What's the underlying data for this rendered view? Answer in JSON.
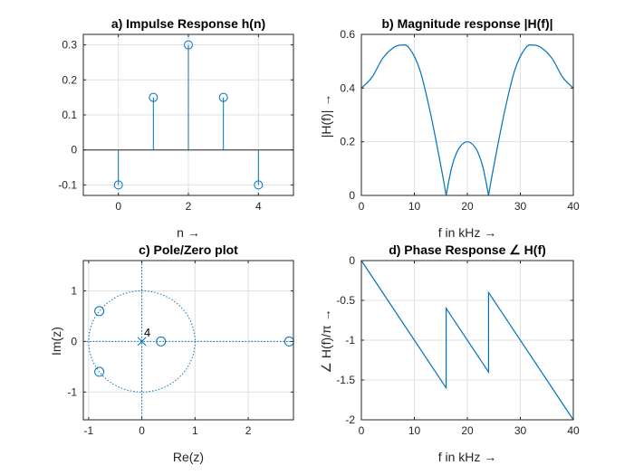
{
  "colors": {
    "series": "#0072BD",
    "grid": "#dfdfdf",
    "axis": "#262626"
  },
  "chart_data": [
    {
      "id": "a",
      "type": "stem",
      "title": "a) Impulse Response h(n)",
      "xlabel": "n →",
      "ylabel": "",
      "xlim": [
        -1,
        5
      ],
      "ylim": [
        -0.13,
        0.33
      ],
      "xticks": [
        0,
        2,
        4
      ],
      "xticklabels": [
        "0",
        "2",
        "4"
      ],
      "yticks": [
        -0.1,
        0,
        0.1,
        0.2,
        0.3
      ],
      "yticklabels": [
        "-0.1",
        "0",
        "0.1",
        "0.2",
        "0.3"
      ],
      "grid": true,
      "x": [
        0,
        1,
        2,
        3,
        4
      ],
      "values": [
        -0.1,
        0.15,
        0.3,
        0.15,
        -0.1
      ]
    },
    {
      "id": "b",
      "type": "line",
      "title": "b) Magnitude response |H(f)|",
      "xlabel": "f in kHz →",
      "ylabel": "|H(f)| →",
      "xlim": [
        0,
        40
      ],
      "ylim": [
        0,
        0.6
      ],
      "xticks": [
        0,
        10,
        20,
        30,
        40
      ],
      "xticklabels": [
        "0",
        "10",
        "20",
        "30",
        "40"
      ],
      "yticks": [
        0,
        0.2,
        0.4,
        0.6
      ],
      "yticklabels": [
        "0",
        "0.2",
        "0.4",
        "0.6"
      ],
      "grid": true,
      "x": [
        0,
        2,
        4,
        6,
        7.5,
        9,
        11,
        13,
        15,
        16,
        17,
        18,
        19,
        20,
        21,
        22,
        23,
        24,
        25,
        27,
        29,
        31,
        32.5,
        34,
        36,
        38,
        40
      ],
      "values": [
        0.4,
        0.44,
        0.51,
        0.55,
        0.56,
        0.55,
        0.47,
        0.31,
        0.11,
        0,
        0.1,
        0.16,
        0.19,
        0.2,
        0.19,
        0.16,
        0.1,
        0,
        0.11,
        0.31,
        0.47,
        0.55,
        0.56,
        0.55,
        0.51,
        0.44,
        0.4
      ]
    },
    {
      "id": "c",
      "type": "scatter",
      "title": "c) Pole/Zero plot",
      "xlabel": "Re(z)",
      "ylabel": "Im(z)",
      "xlim": [
        -1.1,
        2.85
      ],
      "ylim": [
        -1.55,
        1.6
      ],
      "xticks": [
        -1,
        0,
        1,
        2
      ],
      "xticklabels": [
        "-1",
        "0",
        "1",
        "2"
      ],
      "yticks": [
        -1,
        0,
        1
      ],
      "yticklabels": [
        "-1",
        "0",
        "1"
      ],
      "grid": true,
      "unit_circle": true,
      "zeros": [
        [
          -0.8,
          0.6
        ],
        [
          -0.8,
          -0.6
        ],
        [
          0.36,
          0
        ],
        [
          2.77,
          0
        ]
      ],
      "poles": [
        [
          0,
          0
        ]
      ],
      "annotations": [
        {
          "text": "4",
          "x": 0.04,
          "y": 0.1
        }
      ]
    },
    {
      "id": "d",
      "type": "line",
      "title": "d) Phase Response ∠ H(f)",
      "xlabel": "f in kHz →",
      "ylabel": "∠ H(f)/π →",
      "xlim": [
        0,
        40
      ],
      "ylim": [
        -2,
        0
      ],
      "xticks": [
        0,
        10,
        20,
        30,
        40
      ],
      "xticklabels": [
        "0",
        "10",
        "20",
        "30",
        "40"
      ],
      "yticks": [
        -2,
        -1.5,
        -1,
        -0.5,
        0
      ],
      "yticklabels": [
        "-2",
        "-1.5",
        "-1",
        "-0.5",
        "0"
      ],
      "grid": true,
      "x": [
        0,
        16,
        16,
        24,
        24,
        40
      ],
      "values": [
        0,
        -1.6,
        -0.6,
        -1.4,
        -0.4,
        -2
      ]
    }
  ]
}
